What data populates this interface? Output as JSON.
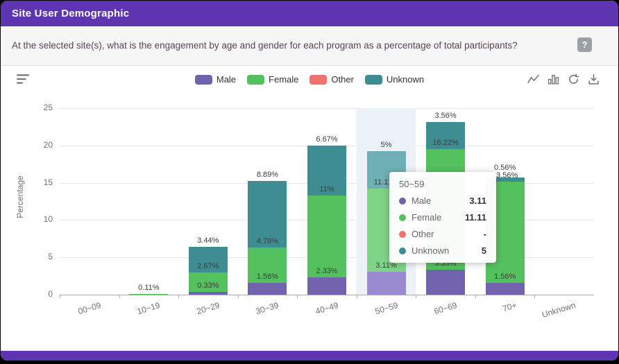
{
  "card": {
    "title": "Site User Demographic",
    "subtitle": "At the selected site(s), what is the engagement by age and gender for each program as a percentage of total participants?",
    "help_label": "?"
  },
  "colors": {
    "accent": "#5e35b1",
    "subtitle_text": "#5d4157",
    "hover_band": "#edf2f8",
    "axis_text": "#6e7079"
  },
  "toolbar": {
    "icons": [
      "line-chart",
      "bar-chart",
      "restore",
      "download"
    ]
  },
  "chart_data": {
    "type": "bar",
    "stacked": true,
    "title": "",
    "xlabel": "",
    "ylabel": "Percentage",
    "ylim": [
      0,
      25
    ],
    "yticks": [
      0,
      5,
      10,
      15,
      20,
      25
    ],
    "grid": true,
    "legend_position": "top",
    "categories": [
      "00~09",
      "10~19",
      "20~29",
      "30~39",
      "40~49",
      "50~59",
      "60~69",
      "70+",
      "Unknown"
    ],
    "series": [
      {
        "name": "Male",
        "color": "#7162ad",
        "hover": "#9a8bd0",
        "values": [
          0,
          0,
          0.33,
          1.56,
          2.33,
          3.11,
          3.33,
          1.56,
          0
        ]
      },
      {
        "name": "Female",
        "color": "#54c15f",
        "hover": "#7fd487",
        "values": [
          0,
          0.11,
          2.67,
          4.78,
          11,
          11.11,
          16.22,
          13.56,
          0
        ]
      },
      {
        "name": "Other",
        "color": "#f0716d",
        "hover": "#f59e9c",
        "values": [
          0,
          0,
          0,
          0,
          0,
          0,
          0,
          0,
          0
        ]
      },
      {
        "name": "Unknown",
        "color": "#3d8d92",
        "hover": "#6fb0b6",
        "values": [
          0,
          0,
          3.44,
          8.89,
          6.67,
          5,
          3.56,
          0.56,
          0
        ]
      }
    ],
    "highlighted_category": "50~59",
    "tooltip": {
      "title": "50~59",
      "rows": [
        {
          "name": "Male",
          "value": "3.11"
        },
        {
          "name": "Female",
          "value": "11.11"
        },
        {
          "name": "Other",
          "value": "-"
        },
        {
          "name": "Unknown",
          "value": "5"
        }
      ]
    }
  }
}
